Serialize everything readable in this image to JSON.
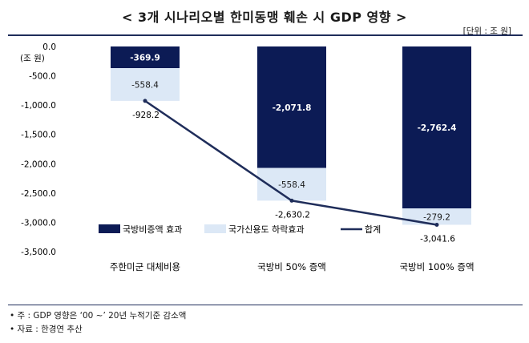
{
  "header": {
    "title": "< 3개 시나리오별 한미동맹 훼손 시 GDP 영향 >",
    "unit": "[단위 : 조 원]"
  },
  "notes": {
    "note1": "• 주 : GDP 영향은  ‘00 ~’ 20년 누적기준 감소액",
    "note2": "• 자료 : 한경연 추산"
  },
  "colors": {
    "defense": "#0c1b55",
    "credit": "#dce8f6",
    "total_line": "#1f2d5a"
  },
  "chart_data": {
    "type": "bar",
    "stacked": true,
    "ylabel": "(조 원)",
    "ylim": [
      -3500,
      0
    ],
    "yticks": [
      "0.0",
      "-500.0",
      "-1,000.0",
      "-1,500.0",
      "-2,000.0",
      "-2,500.0",
      "-3,000.0",
      "-3,500.0"
    ],
    "ytick_values": [
      0,
      -500,
      -1000,
      -1500,
      -2000,
      -2500,
      -3000,
      -3500
    ],
    "categories": [
      "주한미군 대체비용",
      "국방비 50% 증액",
      "국방비 100% 증액"
    ],
    "series": [
      {
        "name": "국방비증액 효과",
        "type": "bar",
        "values": [
          -369.9,
          -2071.8,
          -2762.4
        ],
        "labels": [
          "-369.9",
          "-2,071.8",
          "-2,762.4"
        ]
      },
      {
        "name": "국가신용도 하락효과",
        "type": "bar",
        "values": [
          -558.4,
          -558.4,
          -279.2
        ],
        "labels": [
          "-558.4",
          "-558.4",
          "-279.2"
        ]
      },
      {
        "name": "합계",
        "type": "line",
        "values": [
          -928.2,
          -2630.2,
          -3041.6
        ],
        "labels": [
          "-928.2",
          "-2,630.2",
          "-3,041.6"
        ]
      }
    ],
    "legend_position": "inside-bottom"
  }
}
